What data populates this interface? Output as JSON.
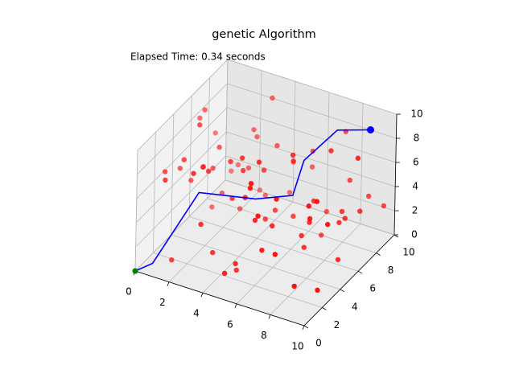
{
  "chart_data": {
    "type": "scatter3d",
    "title": "genetic Algorithm",
    "annotation": "Elapsed Time: 0.34 seconds",
    "xlim": [
      0,
      10
    ],
    "ylim": [
      0,
      10
    ],
    "zlim": [
      0,
      10
    ],
    "xticks": [
      0,
      2,
      4,
      6,
      8,
      10
    ],
    "yticks": [
      0,
      2,
      4,
      6,
      8,
      10
    ],
    "zticks": [
      0,
      2,
      4,
      6,
      8,
      10
    ],
    "grid": true,
    "series": [
      {
        "type": "scatter",
        "color": "#ff0000",
        "x": [
          0.2,
          1.5,
          3.1,
          4.7,
          6.2,
          8.4,
          9.6,
          2.3,
          5.5,
          7.8,
          0.9,
          3.6,
          6.9,
          9.1,
          1.2,
          4.3,
          7.2,
          8.8,
          2.7,
          5.1,
          0.5,
          3.9,
          6.4,
          9.3,
          1.8,
          4.9,
          7.6,
          2.1,
          5.8,
          8.1,
          0.7,
          3.3,
          6.6,
          9.8,
          1.4,
          4.1,
          7.4,
          2.9,
          5.3,
          8.6,
          0.3,
          3.7,
          6.1,
          9.0,
          1.6,
          4.5,
          7.0,
          2.5,
          5.9,
          8.3,
          1.1,
          3.5,
          6.8,
          9.5,
          2.0,
          4.6,
          7.9,
          0.6,
          5.0,
          8.0,
          1.9,
          4.0,
          6.3,
          9.2,
          2.6,
          5.6,
          7.3,
          0.4,
          3.0,
          8.9,
          1.3,
          4.4,
          6.7,
          9.7,
          2.4,
          5.2,
          7.7,
          0.8,
          3.8,
          8.5
        ],
        "y": [
          7.1,
          2.4,
          8.6,
          5.3,
          0.9,
          6.8,
          3.2,
          9.5,
          1.7,
          4.6,
          5.8,
          0.4,
          7.7,
          2.9,
          9.1,
          3.6,
          6.2,
          1.1,
          8.3,
          4.8,
          2.2,
          9.8,
          0.6,
          7.4,
          5.1,
          1.9,
          8.9,
          3.4,
          6.6,
          0.2,
          9.3,
          4.2,
          2.7,
          6.1,
          1.4,
          7.9,
          4.5,
          0.8,
          9.6,
          3.1,
          6.4,
          1.6,
          8.1,
          5.6,
          3.9,
          9.0,
          0.3,
          6.9,
          2.1,
          7.3,
          4.0,
          8.4,
          1.2,
          9.7,
          5.4,
          2.6,
          6.7,
          3.7,
          0.5,
          8.7,
          6.0,
          4.3,
          9.4,
          1.8,
          7.6,
          3.0,
          5.0,
          8.0,
          2.3,
          6.5,
          0.7,
          9.2,
          4.7,
          2.0,
          8.5,
          5.7,
          1.0,
          7.0,
          3.5,
          9.9
        ],
        "z": [
          3.4,
          8.1,
          1.2,
          6.5,
          9.0,
          2.7,
          5.8,
          0.6,
          7.3,
          4.1,
          9.4,
          5.2,
          0.3,
          7.7,
          2.5,
          8.6,
          4.4,
          1.9,
          6.1,
          3.0,
          6.8,
          0.9,
          9.7,
          3.6,
          5.5,
          1.4,
          8.3,
          7.0,
          2.2,
          4.9,
          1.6,
          7.4,
          4.7,
          9.2,
          0.5,
          6.3,
          2.9,
          8.8,
          3.8,
          5.9,
          8.0,
          2.0,
          6.6,
          0.8,
          9.9,
          4.3,
          7.5,
          1.1,
          5.3,
          3.2,
          5.0,
          9.6,
          3.9,
          2.4,
          7.1,
          0.2,
          8.5,
          6.0,
          1.7,
          4.6,
          2.8,
          6.9,
          0.7,
          8.2,
          4.0,
          9.3,
          1.5,
          5.6,
          7.9,
          3.5,
          7.6,
          4.2,
          9.1,
          1.3,
          6.4,
          3.1,
          8.7,
          0.4,
          5.1,
          2.6
        ]
      },
      {
        "type": "line",
        "color": "#0000ff",
        "x": [
          0,
          0.7,
          2,
          4.3,
          5.8,
          5.8,
          7,
          9
        ],
        "y": [
          0,
          0.6,
          3.2,
          5.2,
          6.5,
          7.7,
          9.1,
          9
        ],
        "z": [
          0,
          0.5,
          5,
          4,
          4,
          6,
          8,
          9
        ]
      },
      {
        "type": "scatter",
        "color": "#008000",
        "x": [
          0
        ],
        "y": [
          0
        ],
        "z": [
          0
        ]
      },
      {
        "type": "scatter",
        "color": "#0000ff",
        "x": [
          9
        ],
        "y": [
          9
        ],
        "z": [
          9
        ]
      }
    ]
  }
}
